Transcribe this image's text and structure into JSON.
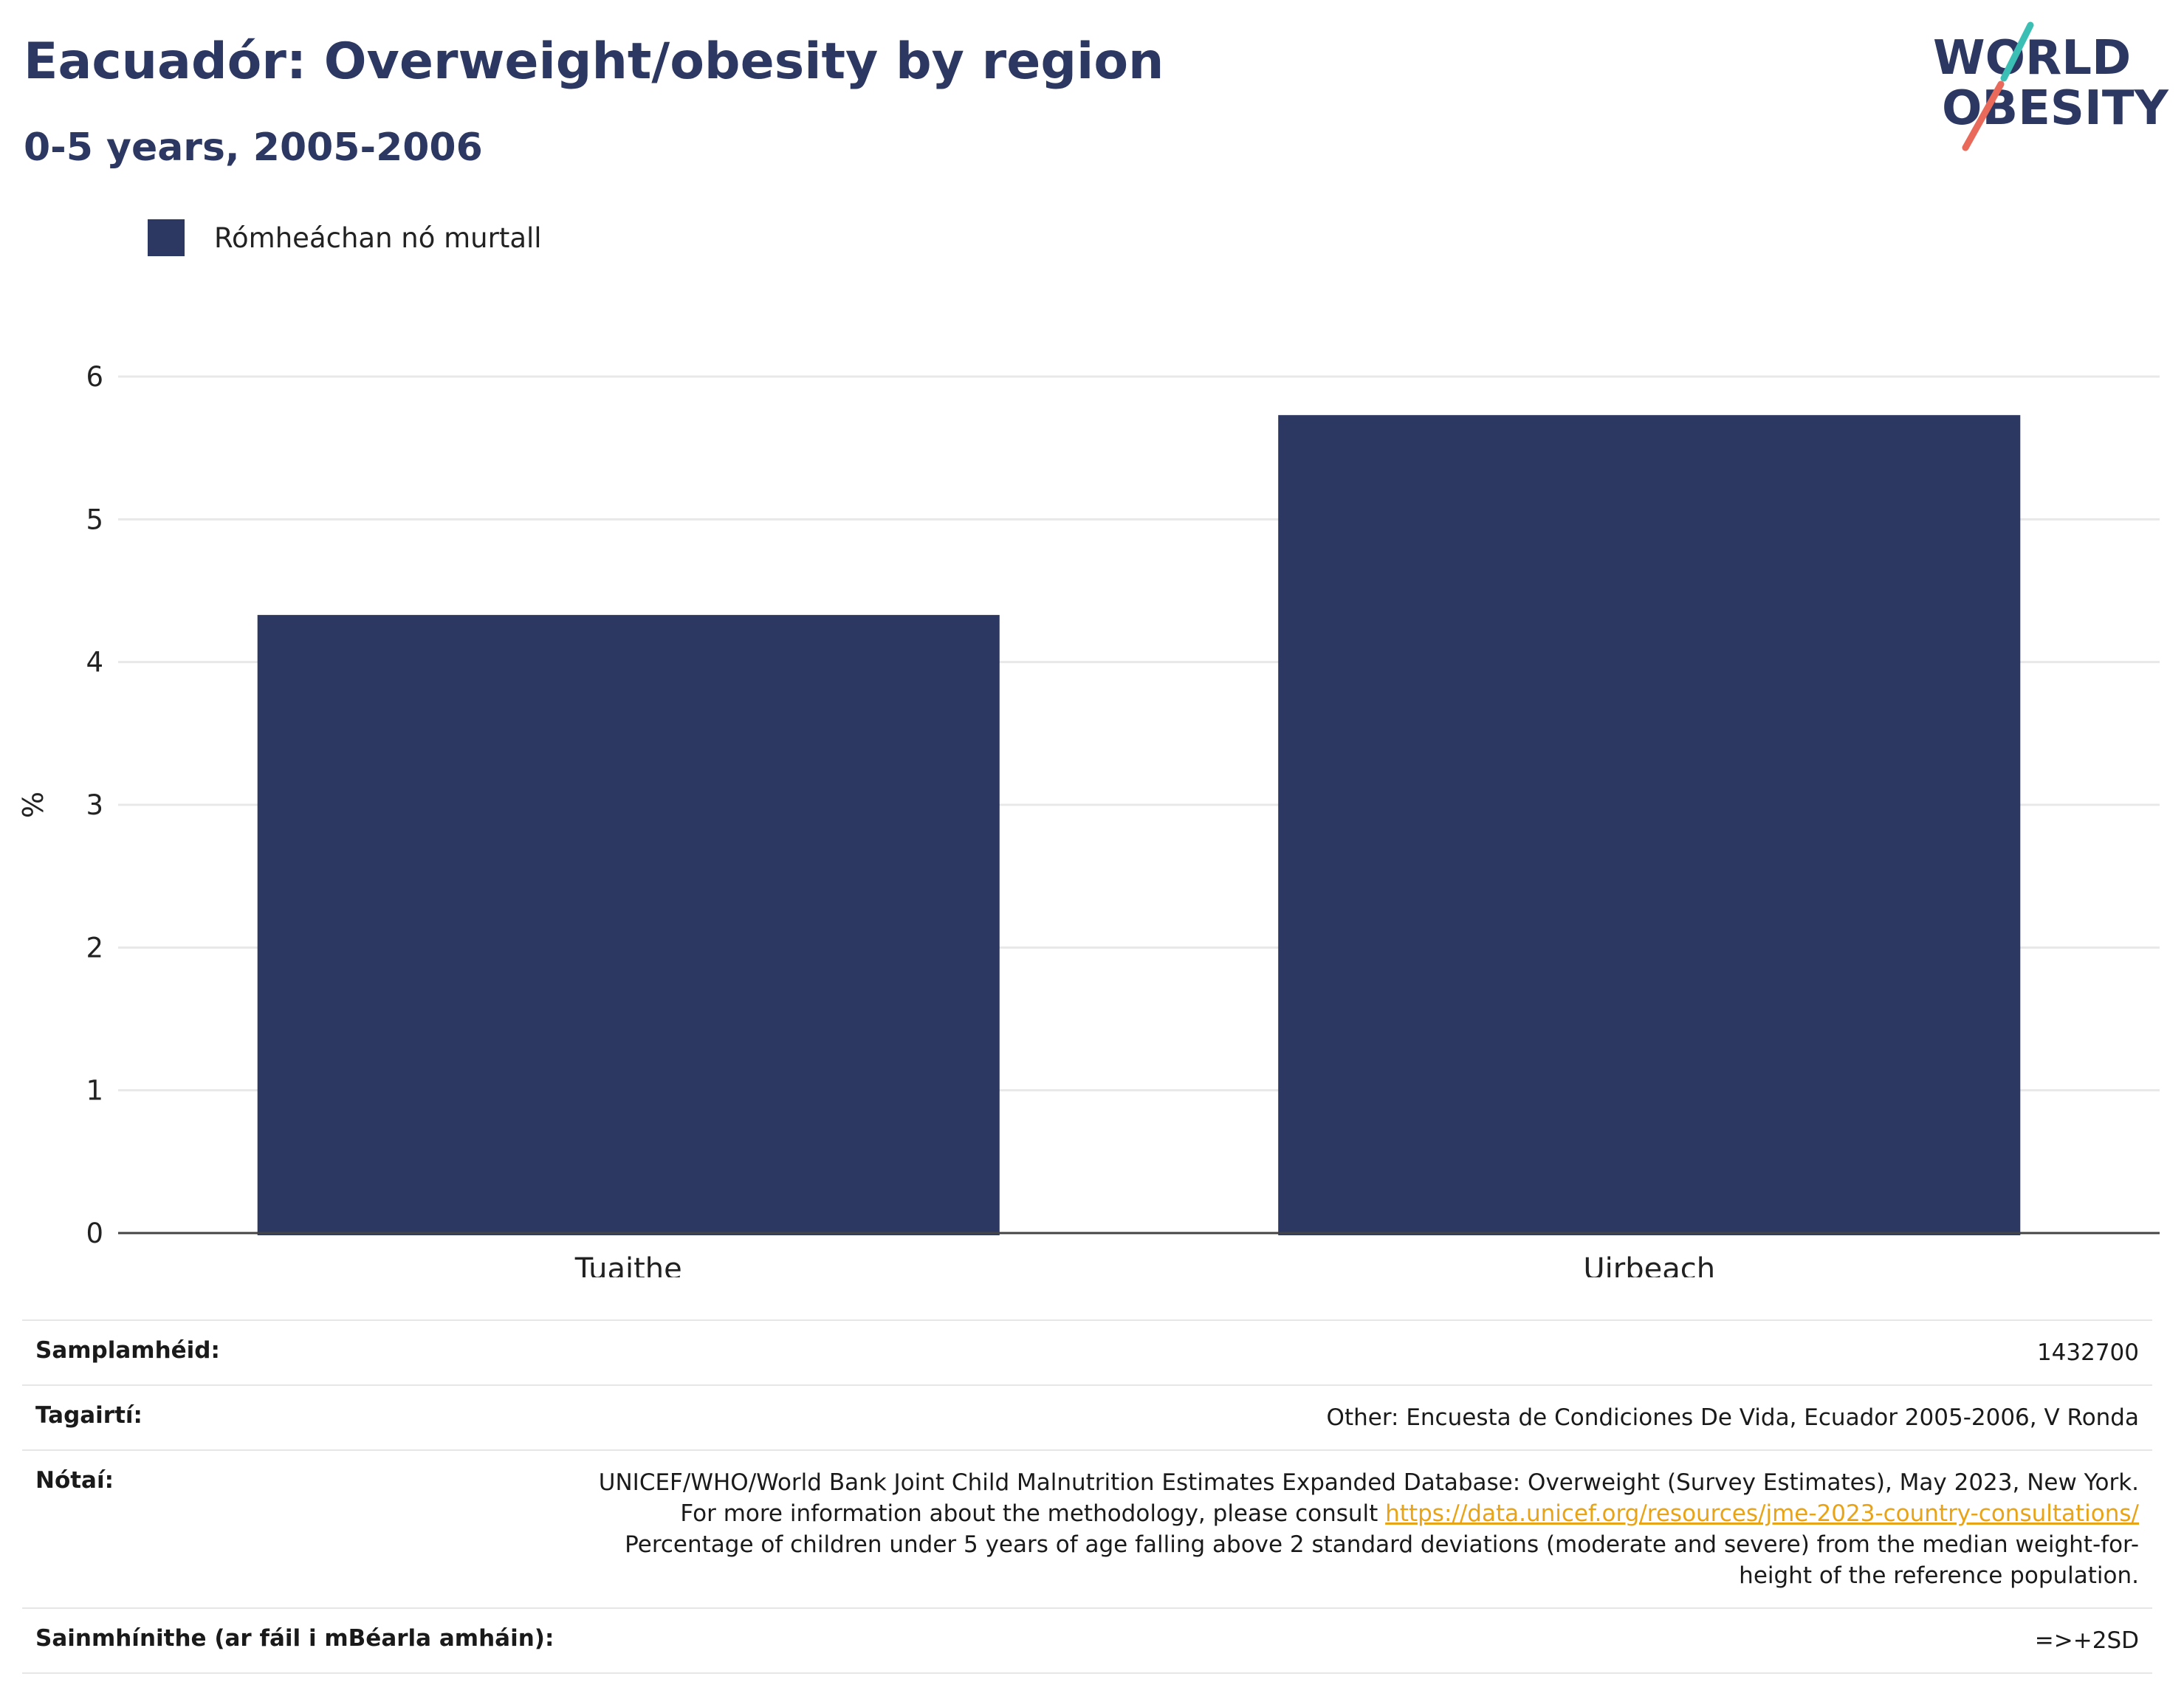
{
  "header": {
    "title": "Eacuadór: Overweight/obesity by region",
    "subtitle": "0-5 years, 2005-2006"
  },
  "logo": {
    "line1": "WORLD",
    "line2": "OBESITY",
    "colors": {
      "text": "#2c3862",
      "slash_top": "#3bbfb5",
      "slash_bottom": "#e96a5a"
    }
  },
  "legend": {
    "items": [
      {
        "label": "Rómheáchan nó murtall",
        "color": "#2c3862"
      }
    ]
  },
  "chart_data": {
    "type": "bar",
    "categories": [
      "Tuaithe",
      "Uirbeach"
    ],
    "series": [
      {
        "name": "Rómheáchan nó murtall",
        "values": [
          4.33,
          5.73
        ],
        "color": "#2c3862"
      }
    ],
    "ylabel": "%",
    "xlabel": "",
    "ylim": [
      0,
      6
    ],
    "yticks": [
      0,
      1,
      2,
      3,
      4,
      5,
      6
    ],
    "grid": true,
    "legend_position": "top-left"
  },
  "info": {
    "rows": [
      {
        "key": "Samplamhéid:",
        "value": "1432700"
      },
      {
        "key": "Tagairtí:",
        "value": "Other: Encuesta de Condiciones De Vida, Ecuador 2005-2006, V Ronda"
      },
      {
        "key": "Nótaí:",
        "value_before": "UNICEF/WHO/World Bank Joint Child Malnutrition Estimates Expanded Database: Overweight (Survey Estimates), May 2023, New York. For more information about the methodology, please consult ",
        "link": "https://data.unicef.org/resources/jme-2023-country-consultations/",
        "value_after": " Percentage of children under 5 years of age falling above 2 standard deviations (moderate and severe) from the median weight-for-height of the reference population."
      },
      {
        "key": "Sainmhínithe (ar fáil i mBéarla amháin):",
        "value": "=>+2SD"
      }
    ]
  }
}
